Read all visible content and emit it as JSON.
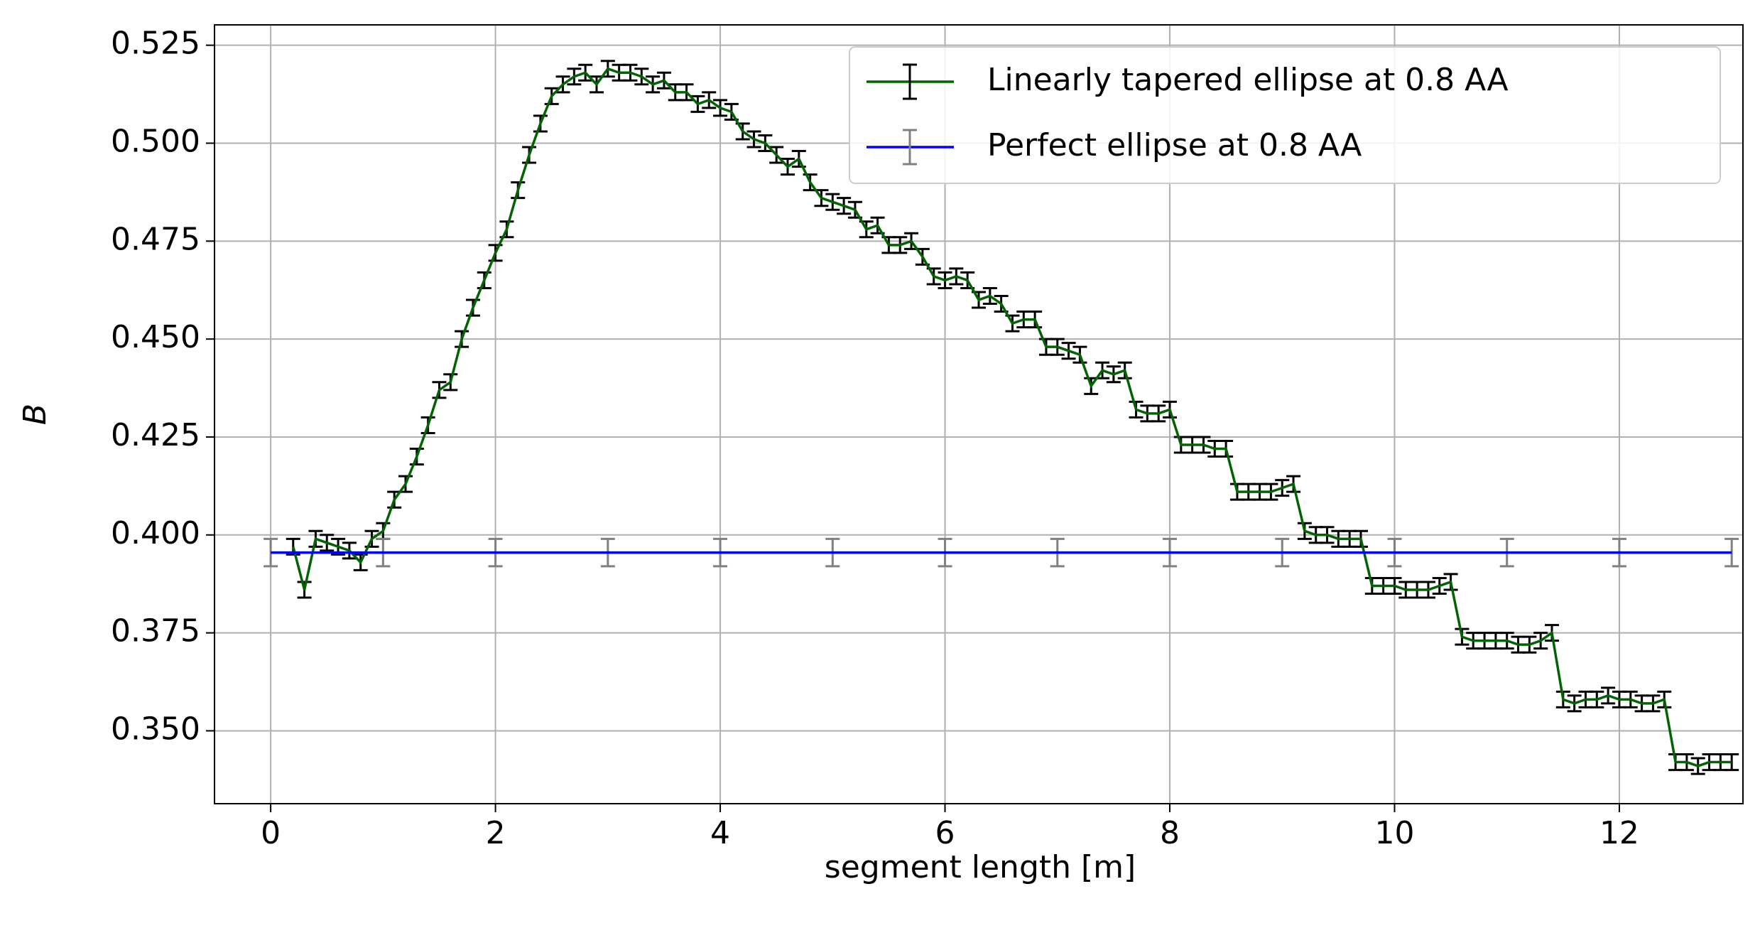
{
  "chart_data": {
    "type": "errorbar-line",
    "xlabel": "segment length [m]",
    "ylabel": "B",
    "xlim": [
      -0.5,
      13.1
    ],
    "ylim": [
      0.3314,
      0.5302
    ],
    "xticks": [
      0,
      2,
      4,
      6,
      8,
      10,
      12
    ],
    "yticks": [
      {
        "value": 0.35,
        "label": "0.350"
      },
      0.375,
      {
        "value": 0.4,
        "label": "0.400"
      },
      0.425,
      {
        "value": 0.45,
        "label": "0.450"
      },
      0.475,
      {
        "value": 0.5,
        "label": "0.500"
      },
      0.525
    ],
    "grid": true,
    "legend": "upper right",
    "series": [
      {
        "name": "Linearly tapered ellipse at 0.8 AA",
        "color": "#006400",
        "ecolor": "#000000",
        "error": 0.002,
        "x": [
          0.2,
          0.3,
          0.4,
          0.5,
          0.6,
          0.7,
          0.8,
          0.9,
          1.0,
          1.1,
          1.2,
          1.3,
          1.4,
          1.5,
          1.6,
          1.7,
          1.8,
          1.9,
          2.0,
          2.1,
          2.2,
          2.3,
          2.4,
          2.5,
          2.6,
          2.7,
          2.8,
          2.9,
          3.0,
          3.1,
          3.2,
          3.3,
          3.4,
          3.5,
          3.6,
          3.7,
          3.8,
          3.9,
          4.0,
          4.1,
          4.2,
          4.3,
          4.4,
          4.5,
          4.6,
          4.7,
          4.8,
          4.9,
          5.0,
          5.1,
          5.2,
          5.3,
          5.4,
          5.5,
          5.6,
          5.7,
          5.8,
          5.9,
          6.0,
          6.1,
          6.2,
          6.3,
          6.4,
          6.5,
          6.6,
          6.7,
          6.8,
          6.9,
          7.0,
          7.1,
          7.2,
          7.3,
          7.4,
          7.5,
          7.6,
          7.7,
          7.8,
          7.9,
          8.0,
          8.1,
          8.2,
          8.3,
          8.4,
          8.5,
          8.6,
          8.7,
          8.8,
          8.9,
          9.0,
          9.1,
          9.2,
          9.3,
          9.4,
          9.5,
          9.6,
          9.7,
          9.8,
          9.9,
          10.0,
          10.1,
          10.2,
          10.3,
          10.4,
          10.5,
          10.6,
          10.7,
          10.8,
          10.9,
          11.0,
          11.1,
          11.2,
          11.3,
          11.4,
          11.5,
          11.6,
          11.7,
          11.8,
          11.9,
          12.0,
          12.1,
          12.2,
          12.3,
          12.4,
          12.5,
          12.6,
          12.7,
          12.8,
          12.9,
          13.0
        ],
        "values": [
          0.397,
          0.386,
          0.399,
          0.398,
          0.397,
          0.396,
          0.393,
          0.399,
          0.401,
          0.409,
          0.413,
          0.42,
          0.428,
          0.437,
          0.439,
          0.45,
          0.458,
          0.465,
          0.472,
          0.478,
          0.488,
          0.497,
          0.505,
          0.512,
          0.515,
          0.517,
          0.518,
          0.515,
          0.519,
          0.518,
          0.518,
          0.517,
          0.515,
          0.516,
          0.513,
          0.513,
          0.51,
          0.511,
          0.509,
          0.508,
          0.503,
          0.501,
          0.5,
          0.497,
          0.494,
          0.496,
          0.49,
          0.486,
          0.485,
          0.484,
          0.483,
          0.478,
          0.479,
          0.474,
          0.474,
          0.475,
          0.471,
          0.466,
          0.465,
          0.466,
          0.465,
          0.46,
          0.461,
          0.459,
          0.454,
          0.455,
          0.455,
          0.448,
          0.448,
          0.447,
          0.446,
          0.438,
          0.442,
          0.441,
          0.442,
          0.432,
          0.431,
          0.431,
          0.432,
          0.423,
          0.423,
          0.423,
          0.422,
          0.422,
          0.411,
          0.411,
          0.411,
          0.411,
          0.412,
          0.413,
          0.401,
          0.4,
          0.4,
          0.399,
          0.399,
          0.399,
          0.387,
          0.387,
          0.387,
          0.386,
          0.386,
          0.386,
          0.387,
          0.388,
          0.374,
          0.373,
          0.373,
          0.373,
          0.373,
          0.372,
          0.372,
          0.373,
          0.375,
          0.358,
          0.357,
          0.358,
          0.358,
          0.359,
          0.358,
          0.358,
          0.357,
          0.357,
          0.358,
          0.342,
          0.342,
          0.341,
          0.342,
          0.342,
          0.342
        ]
      },
      {
        "name": "Perfect ellipse at 0.8 AA",
        "color": "#0000ff",
        "ecolor": "#808080",
        "error": 0.0035,
        "x": [
          0,
          1,
          2,
          3,
          4,
          5,
          6,
          7,
          8,
          9,
          10,
          11,
          12,
          13
        ],
        "values": [
          0.3955,
          0.3955,
          0.3955,
          0.3955,
          0.3955,
          0.3955,
          0.3955,
          0.3955,
          0.3955,
          0.3955,
          0.3955,
          0.3955,
          0.3955,
          0.3955
        ]
      }
    ]
  }
}
